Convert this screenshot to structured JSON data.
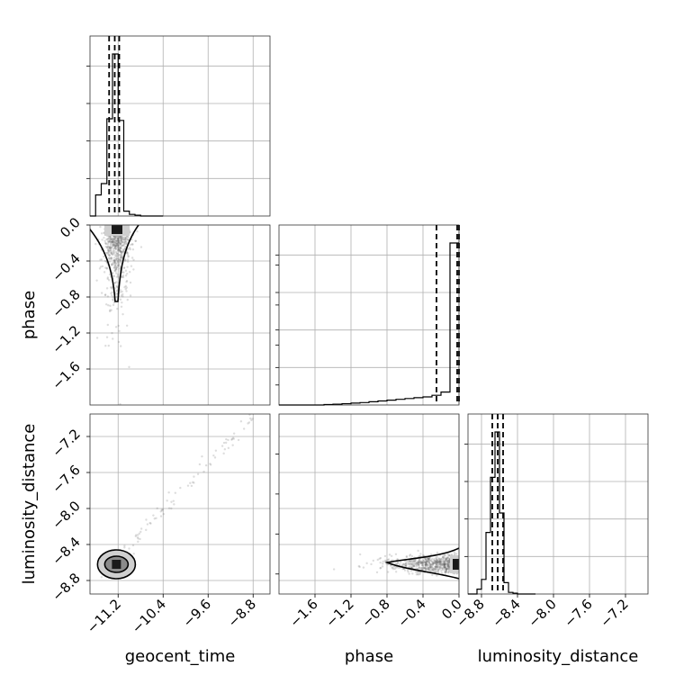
{
  "chart_data": {
    "type": "scatter",
    "parameters": [
      "geocent_time",
      "phase",
      "luminosity_distance"
    ],
    "axes": {
      "geocent_time": {
        "label": "geocent_time",
        "range": [
          -11.7,
          -8.5
        ],
        "ticks": [
          -11.2,
          -10.4,
          -9.6,
          -8.8
        ],
        "tick_labels": [
          "−11.2",
          "−10.4",
          "−9.6",
          "−8.8"
        ]
      },
      "phase": {
        "label": "phase",
        "range": [
          -2.0,
          0.0
        ],
        "ticks": [
          -1.6,
          -1.2,
          -0.8,
          -0.4,
          0.0
        ],
        "tick_labels": [
          "−1.6",
          "−1.2",
          "−0.8",
          "−0.4",
          "0.0"
        ]
      },
      "luminosity_distance": {
        "label": "luminosity_distance",
        "range": [
          -8.95,
          -6.95
        ],
        "ticks": [
          -8.8,
          -8.4,
          -8.0,
          -7.6,
          -7.2
        ],
        "tick_labels": [
          "−8.8",
          "−8.4",
          "−8.0",
          "−7.6",
          "−7.2"
        ]
      }
    },
    "histograms": {
      "geocent_time": {
        "bin_edges": [
          -11.7,
          -11.6,
          -11.5,
          -11.4,
          -11.3,
          -11.2,
          -11.1,
          -11.0,
          -10.9,
          -10.8,
          -10.7,
          -10.6,
          -10.5,
          -10.4
        ],
        "counts": [
          0,
          0.13,
          0.2,
          0.6,
          1.0,
          0.59,
          0.03,
          0.01,
          0.005,
          0,
          0,
          0,
          0
        ],
        "quantiles": [
          -11.36,
          -11.26,
          -11.18
        ]
      },
      "phase": {
        "bin_edges": [
          -2.0,
          -1.9,
          -1.8,
          -1.7,
          -1.6,
          -1.5,
          -1.4,
          -1.3,
          -1.2,
          -1.1,
          -1.0,
          -0.9,
          -0.8,
          -0.7,
          -0.6,
          -0.5,
          -0.4,
          -0.3,
          -0.2,
          -0.1,
          0.0
        ],
        "counts": [
          0,
          0,
          0,
          0,
          0,
          0.003,
          0.005,
          0.008,
          0.012,
          0.015,
          0.02,
          0.025,
          0.03,
          0.035,
          0.04,
          0.045,
          0.05,
          0.06,
          0.08,
          1.0
        ],
        "quantiles": [
          -0.25,
          -0.02,
          0.0
        ]
      },
      "luminosity_distance": {
        "bin_edges": [
          -8.95,
          -8.9,
          -8.85,
          -8.8,
          -8.75,
          -8.7,
          -8.65,
          -8.6,
          -8.55,
          -8.5,
          -8.45,
          -8.4,
          -8.35,
          -8.3,
          -8.25,
          -8.2
        ],
        "counts": [
          0,
          0,
          0.03,
          0.09,
          0.38,
          0.72,
          1.0,
          0.5,
          0.07,
          0.01,
          0.005,
          0,
          0,
          0,
          0
        ],
        "quantiles": [
          -8.68,
          -8.62,
          -8.56
        ]
      }
    },
    "density_2d": [
      {
        "x": "geocent_time",
        "y": "phase",
        "center": [
          -11.22,
          -0.02
        ],
        "spread": [
          0.12,
          0.25
        ],
        "n_points": 700
      },
      {
        "x": "geocent_time",
        "y": "luminosity_distance",
        "center": [
          -11.23,
          -8.62
        ],
        "spread": [
          0.12,
          0.05
        ],
        "n_points": 700
      },
      {
        "x": "phase",
        "y": "luminosity_distance",
        "center": [
          -0.02,
          -8.62
        ],
        "spread": [
          0.35,
          0.05
        ],
        "n_points": 700
      }
    ],
    "grid": true
  }
}
